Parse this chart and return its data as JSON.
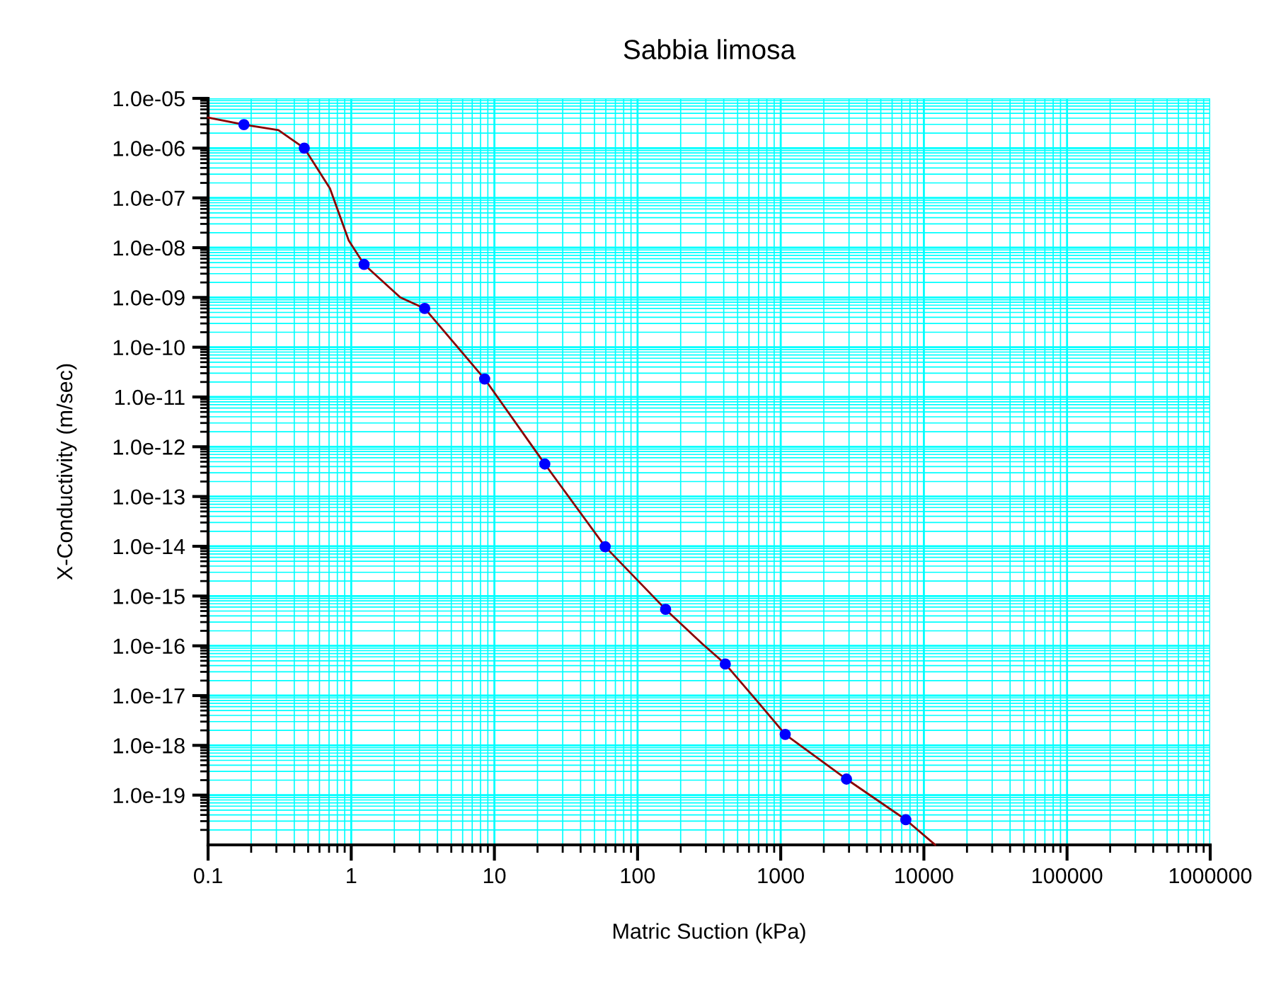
{
  "chart_data": {
    "type": "line",
    "title": "Sabbia limosa",
    "xlabel": "Matric Suction (kPa)",
    "ylabel": "X-Conductivity (m/sec)",
    "log": "xy",
    "grid": true,
    "xlim": [
      0.1,
      1000000
    ],
    "ylim": [
      1e-20,
      1e-05
    ],
    "xticks": [
      0.1,
      1,
      10,
      100,
      1000,
      10000,
      100000,
      1000000
    ],
    "yticks": [
      {
        "value": 1e-05,
        "label": "1.0e-05"
      },
      {
        "value": 1e-06,
        "label": "1.0e-06"
      },
      {
        "value": 1e-07,
        "label": "1.0e-07"
      },
      {
        "value": 1e-08,
        "label": "1.0e-08"
      },
      {
        "value": 1e-09,
        "label": "1.0e-09"
      },
      {
        "value": 1e-10,
        "label": "1.0e-10"
      },
      {
        "value": 1e-11,
        "label": "1.0e-11"
      },
      {
        "value": 1e-12,
        "label": "1.0e-12"
      },
      {
        "value": 1e-13,
        "label": "1.0e-13"
      },
      {
        "value": 1e-14,
        "label": "1.0e-14"
      },
      {
        "value": 1e-15,
        "label": "1.0e-15"
      },
      {
        "value": 1e-16,
        "label": "1.0e-16"
      },
      {
        "value": 1e-17,
        "label": "1.0e-17"
      },
      {
        "value": 1e-18,
        "label": "1.0e-18"
      },
      {
        "value": 1e-19,
        "label": "1.0e-19"
      }
    ],
    "series": [
      {
        "color": "#8b0000",
        "marker": "none",
        "line_style": "solid",
        "x": [
          0.1,
          0.178,
          0.31,
          0.47,
          0.71,
          0.96,
          1.23,
          2.2,
          3.26,
          8.55,
          22.5,
          59.4,
          157,
          283,
          410,
          700,
          1075,
          2880,
          7480,
          12000
        ],
        "values": [
          4.1e-06,
          2.96e-06,
          2.3e-06,
          1e-06,
          1.55e-07,
          1.4e-08,
          4.6e-09,
          1e-09,
          6e-10,
          2.3e-11,
          4.5e-13,
          9.8e-15,
          5.4e-16,
          1.1e-16,
          4.3e-17,
          7.2e-18,
          1.66e-18,
          2.1e-19,
          3.2e-20,
          1e-20
        ]
      },
      {
        "type": "scatter",
        "color": "#0000ff",
        "marker": "circle",
        "x": [
          0.178,
          0.47,
          1.23,
          3.26,
          8.55,
          22.5,
          59.4,
          157,
          410,
          1075,
          2880,
          7480
        ],
        "values": [
          2.96e-06,
          1e-06,
          4.6e-09,
          6e-10,
          2.3e-11,
          4.5e-13,
          9.8e-15,
          5.4e-16,
          4.3e-17,
          1.66e-18,
          2.1e-19,
          3.2e-20
        ]
      }
    ]
  }
}
